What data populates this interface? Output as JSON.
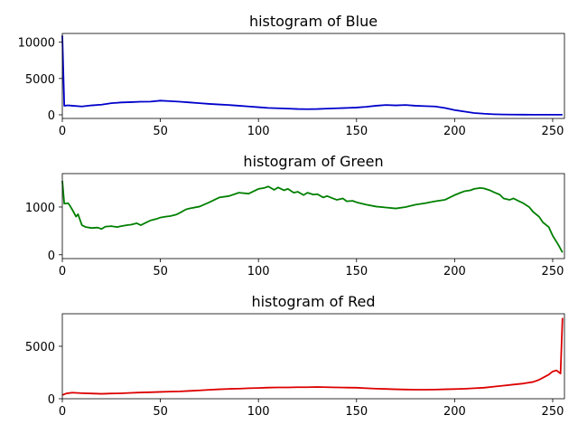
{
  "chart_data": [
    {
      "type": "line",
      "title": "histogram of Blue",
      "color": "#0000cc",
      "xlim": [
        0,
        256
      ],
      "ylim": [
        -500,
        11200
      ],
      "xticks": [
        0,
        50,
        100,
        150,
        200,
        250
      ],
      "xtick_labels": [
        "0",
        "50",
        "100",
        "150",
        "200",
        "250"
      ],
      "yticks": [
        0,
        5000,
        10000
      ],
      "ytick_labels": [
        "0",
        "5000",
        "10000"
      ],
      "x": [
        0,
        1,
        3,
        5,
        10,
        15,
        20,
        25,
        30,
        35,
        40,
        45,
        50,
        55,
        60,
        65,
        70,
        75,
        80,
        85,
        90,
        95,
        100,
        105,
        110,
        115,
        120,
        125,
        130,
        135,
        140,
        145,
        150,
        155,
        160,
        165,
        170,
        175,
        180,
        185,
        190,
        195,
        200,
        205,
        210,
        215,
        220,
        225,
        230,
        235,
        240,
        245,
        250,
        255
      ],
      "values": [
        10900,
        1250,
        1300,
        1250,
        1150,
        1300,
        1400,
        1600,
        1700,
        1750,
        1800,
        1820,
        1950,
        1880,
        1800,
        1700,
        1600,
        1500,
        1420,
        1350,
        1250,
        1150,
        1050,
        950,
        900,
        850,
        800,
        780,
        800,
        850,
        900,
        950,
        1000,
        1100,
        1250,
        1350,
        1300,
        1350,
        1250,
        1200,
        1150,
        950,
        650,
        450,
        250,
        150,
        80,
        40,
        30,
        20,
        15,
        10,
        10,
        10
      ]
    },
    {
      "type": "line",
      "title": "histogram of Green",
      "color": "#008000",
      "xlim": [
        0,
        256
      ],
      "ylim": [
        -80,
        1700
      ],
      "xticks": [
        0,
        50,
        100,
        150,
        200,
        250
      ],
      "xtick_labels": [
        "0",
        "50",
        "100",
        "150",
        "200",
        "250"
      ],
      "yticks": [
        0,
        1000
      ],
      "ytick_labels": [
        "0",
        "1000"
      ],
      "x": [
        0,
        1,
        3,
        4,
        5,
        7,
        8,
        10,
        12,
        15,
        18,
        20,
        22,
        25,
        28,
        30,
        33,
        35,
        38,
        40,
        43,
        45,
        48,
        50,
        53,
        55,
        58,
        60,
        63,
        65,
        70,
        75,
        80,
        85,
        90,
        95,
        100,
        103,
        105,
        108,
        110,
        113,
        115,
        118,
        120,
        123,
        125,
        128,
        130,
        133,
        135,
        138,
        140,
        143,
        145,
        148,
        150,
        155,
        160,
        165,
        170,
        175,
        180,
        185,
        190,
        195,
        200,
        203,
        205,
        208,
        210,
        213,
        215,
        218,
        220,
        223,
        225,
        228,
        230,
        233,
        235,
        238,
        240,
        243,
        245,
        248,
        250,
        253,
        255
      ],
      "values": [
        1550,
        1070,
        1080,
        1020,
        950,
        800,
        850,
        620,
        580,
        560,
        570,
        540,
        590,
        600,
        580,
        600,
        620,
        630,
        660,
        620,
        680,
        720,
        750,
        780,
        800,
        810,
        840,
        880,
        950,
        970,
        1010,
        1100,
        1200,
        1230,
        1300,
        1280,
        1380,
        1400,
        1430,
        1360,
        1410,
        1350,
        1380,
        1300,
        1320,
        1250,
        1300,
        1260,
        1270,
        1200,
        1230,
        1180,
        1150,
        1180,
        1120,
        1130,
        1100,
        1050,
        1010,
        990,
        970,
        1000,
        1050,
        1080,
        1120,
        1150,
        1250,
        1300,
        1330,
        1350,
        1380,
        1400,
        1390,
        1350,
        1310,
        1260,
        1180,
        1150,
        1180,
        1120,
        1080,
        1000,
        900,
        800,
        680,
        580,
        400,
        200,
        50
      ]
    },
    {
      "type": "line",
      "title": "histogram of Red",
      "color": "#dd0000",
      "xlim": [
        0,
        256
      ],
      "ylim": [
        0,
        8100
      ],
      "xticks": [
        0,
        50,
        100,
        150,
        200,
        250
      ],
      "xtick_labels": [
        "0",
        "50",
        "100",
        "150",
        "200",
        "250"
      ],
      "yticks": [
        0,
        5000
      ],
      "ytick_labels": [
        "0",
        "5000"
      ],
      "x": [
        0,
        2,
        5,
        10,
        15,
        20,
        25,
        30,
        35,
        40,
        45,
        50,
        55,
        60,
        65,
        70,
        75,
        80,
        85,
        90,
        95,
        100,
        105,
        110,
        115,
        120,
        125,
        130,
        135,
        140,
        145,
        150,
        155,
        160,
        165,
        170,
        175,
        180,
        185,
        190,
        195,
        200,
        205,
        210,
        215,
        220,
        225,
        230,
        235,
        240,
        243,
        245,
        248,
        250,
        252,
        254,
        255
      ],
      "values": [
        350,
        500,
        580,
        530,
        500,
        470,
        500,
        520,
        560,
        600,
        620,
        650,
        680,
        700,
        750,
        800,
        850,
        900,
        940,
        960,
        1000,
        1020,
        1060,
        1080,
        1080,
        1100,
        1100,
        1120,
        1100,
        1080,
        1060,
        1050,
        1000,
        960,
        930,
        900,
        880,
        860,
        860,
        870,
        900,
        920,
        950,
        1000,
        1050,
        1150,
        1250,
        1350,
        1450,
        1600,
        1800,
        2000,
        2300,
        2600,
        2700,
        2400,
        7700
      ]
    }
  ]
}
